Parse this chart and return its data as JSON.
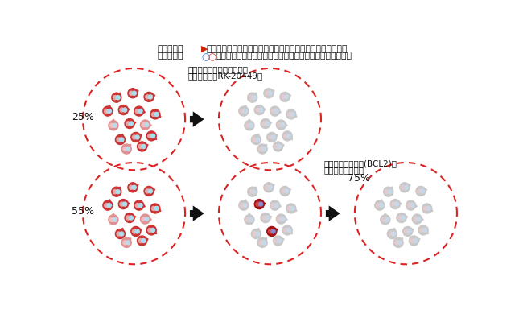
{
  "bg_color": "#ffffff",
  "title_line1": "白血病発症",
  "title_marker": "▶",
  "title_line1b": "に重要と見出した一つの異常を断ち切ることで、他に複数の",
  "title_line2a": "遺伝子異常",
  "title_dot_blue": "○",
  "title_dot_red": "○",
  "title_line2b": "を持った白血病細胞を死滅させることができるかを検証。",
  "label_25": "25%",
  "label_55": "55%",
  "label_75": "75%",
  "label_rk_line1": "白血病発症の分子を標的に",
  "label_rk_line2": "　細胞死滅（RK-20449）",
  "label_bcl2_line1": "治療抵抗性の分子(BCL2)を",
  "label_bcl2_line2": "標的に細胞死誘導",
  "circle_border_color": "#dd2222",
  "red_outer": "#cc3333",
  "red_inner1": "#e8a8a8",
  "red_inner2": "#aaddee",
  "lightred_outer": "#e09090",
  "lightred_inner1": "#f0c0c0",
  "lightred_inner2": "#c0d8e8",
  "gray_outer": "#c8c8c8",
  "gray_inner1": "#e8c8c8",
  "gray_inner2": "#c8d8e8",
  "darkred_outer": "#aa1111",
  "darkred_inner1": "#cc4444",
  "darkred_inner2": "#8888cc",
  "arrow_color": "#111111",
  "text_color": "#111111",
  "marker_color": "#cc2200",
  "dot_blue_color": "#3366cc",
  "dot_red_color": "#cc3333"
}
